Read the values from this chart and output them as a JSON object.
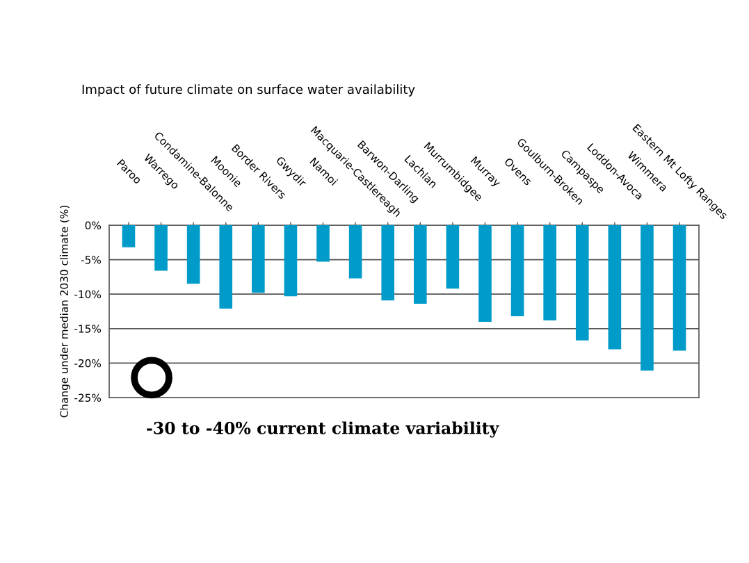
{
  "chart_data": {
    "type": "bar",
    "title": "Impact of future climate on surface water availability",
    "ylabel": "Change under median 2030 climate (%)",
    "categories": [
      "Paroo",
      "Warrego",
      "Condamine-Balonne",
      "Moonie",
      "Border Rivers",
      "Gwydir",
      "Namoi",
      "Macquarie-Castlereagh",
      "Barwon-Darling",
      "Lachlan",
      "Murrumbidgee",
      "Murray",
      "Ovens",
      "Goulburn-Broken",
      "Campaspe",
      "Loddon-Avoca",
      "Wimmera",
      "Eastern Mt Lofty Ranges"
    ],
    "values": [
      -3.2,
      -6.6,
      -8.5,
      -12.1,
      -9.8,
      -10.3,
      -5.3,
      -7.7,
      -10.9,
      -11.4,
      -9.2,
      -14.0,
      -13.2,
      -13.8,
      -16.7,
      -18.0,
      -21.1,
      -18.2
    ],
    "color": "#009bc9",
    "ylim": [
      -25,
      0
    ],
    "yticks": [
      {
        "value": 0,
        "label": "0%"
      },
      {
        "value": -5,
        "label": "-5%"
      },
      {
        "value": -10,
        "label": "-10%"
      },
      {
        "value": -15,
        "label": "-15%"
      },
      {
        "value": -20,
        "label": "-20%"
      },
      {
        "value": -25,
        "label": "-25%"
      }
    ],
    "grid": "y",
    "annotations": [
      "-30 to -40% current climate variability"
    ]
  }
}
